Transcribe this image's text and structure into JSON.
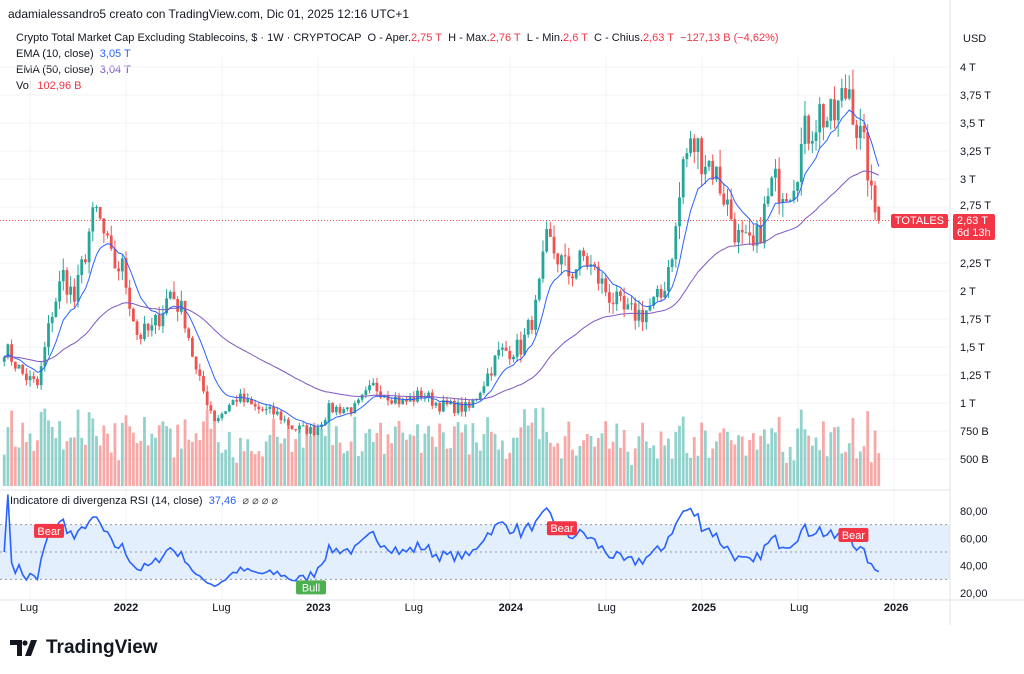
{
  "credit": "adamialessandro5 creato con TradingView.com, Dic 01, 2025 12:16 UTC+1",
  "legend": {
    "symbol": "Crypto Total Market Cap Excluding Stablecoins, $ · 1W · CRYPTOCAP",
    "o_label": "O - Aper.",
    "o": "2,75 T",
    "h_label": "H - Max.",
    "h": "2,76 T",
    "l_label": "L - Min.",
    "l": "2,6 T",
    "c_label": "C - Chius.",
    "c": "2,63 T",
    "change": "−127,13 B (−4,62%)",
    "ema10_label": "EMA (10, close)",
    "ema10": "3,05 T",
    "ema50_label": "EMA (50, close)",
    "ema50": "3,04 T",
    "vol_label": "Vol",
    "vol": "102,96 B"
  },
  "currency": "USD",
  "price_tag": {
    "name": "TOTALES",
    "price": "2,63 T",
    "countdown": "6d 13h",
    "above": "2,75 T"
  },
  "rsi": {
    "title": "Indicatore di divergenza RSI (14, close)",
    "value": "37,46",
    "icons": "⌀ ⌀ ⌀ ⌀"
  },
  "colors": {
    "up": "#26a69a",
    "down": "#ef5350",
    "ema10": "#2962ff",
    "ema50": "#7e57c2",
    "rsi": "#2962ff",
    "rsi_band": "#e3effd",
    "bear": "#f23645",
    "bull": "#4caf50"
  },
  "brand": "TradingView",
  "chart_data": {
    "type": "candlestick",
    "interval": "1W",
    "price_axis": {
      "labels": [
        "4 T",
        "3,75 T",
        "3,5 T",
        "3,25 T",
        "3 T",
        "2,75 T",
        "2,25 T",
        "2 T",
        "1,75 T",
        "1,5 T",
        "1,25 T",
        "1 T",
        "750 B",
        "500 B"
      ],
      "values": [
        4,
        3.75,
        3.5,
        3.25,
        3,
        2.75,
        2.25,
        2,
        1.75,
        1.5,
        1.25,
        1,
        0.75,
        0.5
      ]
    },
    "rsi_axis": {
      "labels": [
        "80,00",
        "60,00",
        "40,00",
        "20,00"
      ],
      "values": [
        80,
        60,
        40,
        20
      ],
      "band": [
        30,
        70
      ]
    },
    "x_axis": [
      {
        "label": "Lug",
        "date": "2021-07-01"
      },
      {
        "label": "2022",
        "date": "2022-01-01"
      },
      {
        "label": "Lug",
        "date": "2022-07-01"
      },
      {
        "label": "2023",
        "date": "2023-01-01"
      },
      {
        "label": "Lug",
        "date": "2023-07-01"
      },
      {
        "label": "2024",
        "date": "2024-01-01"
      },
      {
        "label": "Lug",
        "date": "2024-07-01"
      },
      {
        "label": "2025",
        "date": "2025-01-01"
      },
      {
        "label": "Lug",
        "date": "2025-07-01"
      },
      {
        "label": "2026",
        "date": "2026-01-01"
      }
    ],
    "close_points_T": [
      [
        "2021-05-15",
        1.5
      ],
      [
        "2021-06-20",
        1.25
      ],
      [
        "2021-07-18",
        1.15
      ],
      [
        "2021-08-15",
        1.85
      ],
      [
        "2021-09-05",
        2.15
      ],
      [
        "2021-09-26",
        1.9
      ],
      [
        "2021-10-24",
        2.55
      ],
      [
        "2021-11-07",
        2.7
      ],
      [
        "2021-12-05",
        2.25
      ],
      [
        "2021-12-26",
        2.2
      ],
      [
        "2022-01-23",
        1.6
      ],
      [
        "2022-02-20",
        1.65
      ],
      [
        "2022-03-27",
        2.0
      ],
      [
        "2022-04-24",
        1.75
      ],
      [
        "2022-05-15",
        1.25
      ],
      [
        "2022-06-19",
        0.85
      ],
      [
        "2022-07-31",
        1.05
      ],
      [
        "2022-09-04",
        0.95
      ],
      [
        "2022-10-16",
        0.9
      ],
      [
        "2022-11-13",
        0.78
      ],
      [
        "2022-12-25",
        0.75
      ],
      [
        "2023-01-22",
        0.95
      ],
      [
        "2023-03-12",
        0.95
      ],
      [
        "2023-04-16",
        1.15
      ],
      [
        "2023-06-11",
        1.0
      ],
      [
        "2023-07-16",
        1.08
      ],
      [
        "2023-08-20",
        0.98
      ],
      [
        "2023-10-15",
        0.95
      ],
      [
        "2023-11-12",
        1.2
      ],
      [
        "2023-12-10",
        1.45
      ],
      [
        "2024-01-21",
        1.5
      ],
      [
        "2024-02-18",
        1.85
      ],
      [
        "2024-03-10",
        2.45
      ],
      [
        "2024-04-21",
        2.15
      ],
      [
        "2024-05-19",
        2.3
      ],
      [
        "2024-06-30",
        2.0
      ],
      [
        "2024-08-04",
        1.8
      ],
      [
        "2024-09-08",
        1.8
      ],
      [
        "2024-10-13",
        1.95
      ],
      [
        "2024-11-10",
        2.55
      ],
      [
        "2024-11-24",
        3.2
      ],
      [
        "2024-12-15",
        3.3
      ],
      [
        "2025-01-19",
        3.1
      ],
      [
        "2025-02-09",
        2.85
      ],
      [
        "2025-03-09",
        2.45
      ],
      [
        "2025-04-06",
        2.35
      ],
      [
        "2025-05-11",
        2.95
      ],
      [
        "2025-06-15",
        2.95
      ],
      [
        "2025-07-13",
        3.4
      ],
      [
        "2025-08-10",
        3.6
      ],
      [
        "2025-08-31",
        3.5
      ],
      [
        "2025-09-21",
        3.7
      ],
      [
        "2025-10-05",
        3.85
      ],
      [
        "2025-10-19",
        3.45
      ],
      [
        "2025-11-09",
        3.1
      ],
      [
        "2025-11-16",
        2.75
      ],
      [
        "2025-11-30",
        2.63
      ]
    ],
    "last_candle": {
      "open": 2.75,
      "high": 2.76,
      "low": 2.6,
      "close": 2.63
    },
    "signals": [
      {
        "label": "Bear",
        "date": "2021-08-08",
        "rsi": 72
      },
      {
        "label": "Bull",
        "date": "2022-12-18",
        "rsi": 30
      },
      {
        "label": "Bear",
        "date": "2024-04-07",
        "rsi": 74
      },
      {
        "label": "Bear",
        "date": "2025-10-12",
        "rsi": 69
      }
    ],
    "series": [
      {
        "name": "EMA (10, close)"
      },
      {
        "name": "EMA (50, close)"
      },
      {
        "name": "Vol"
      },
      {
        "name": "RSI (14, close)"
      }
    ]
  }
}
